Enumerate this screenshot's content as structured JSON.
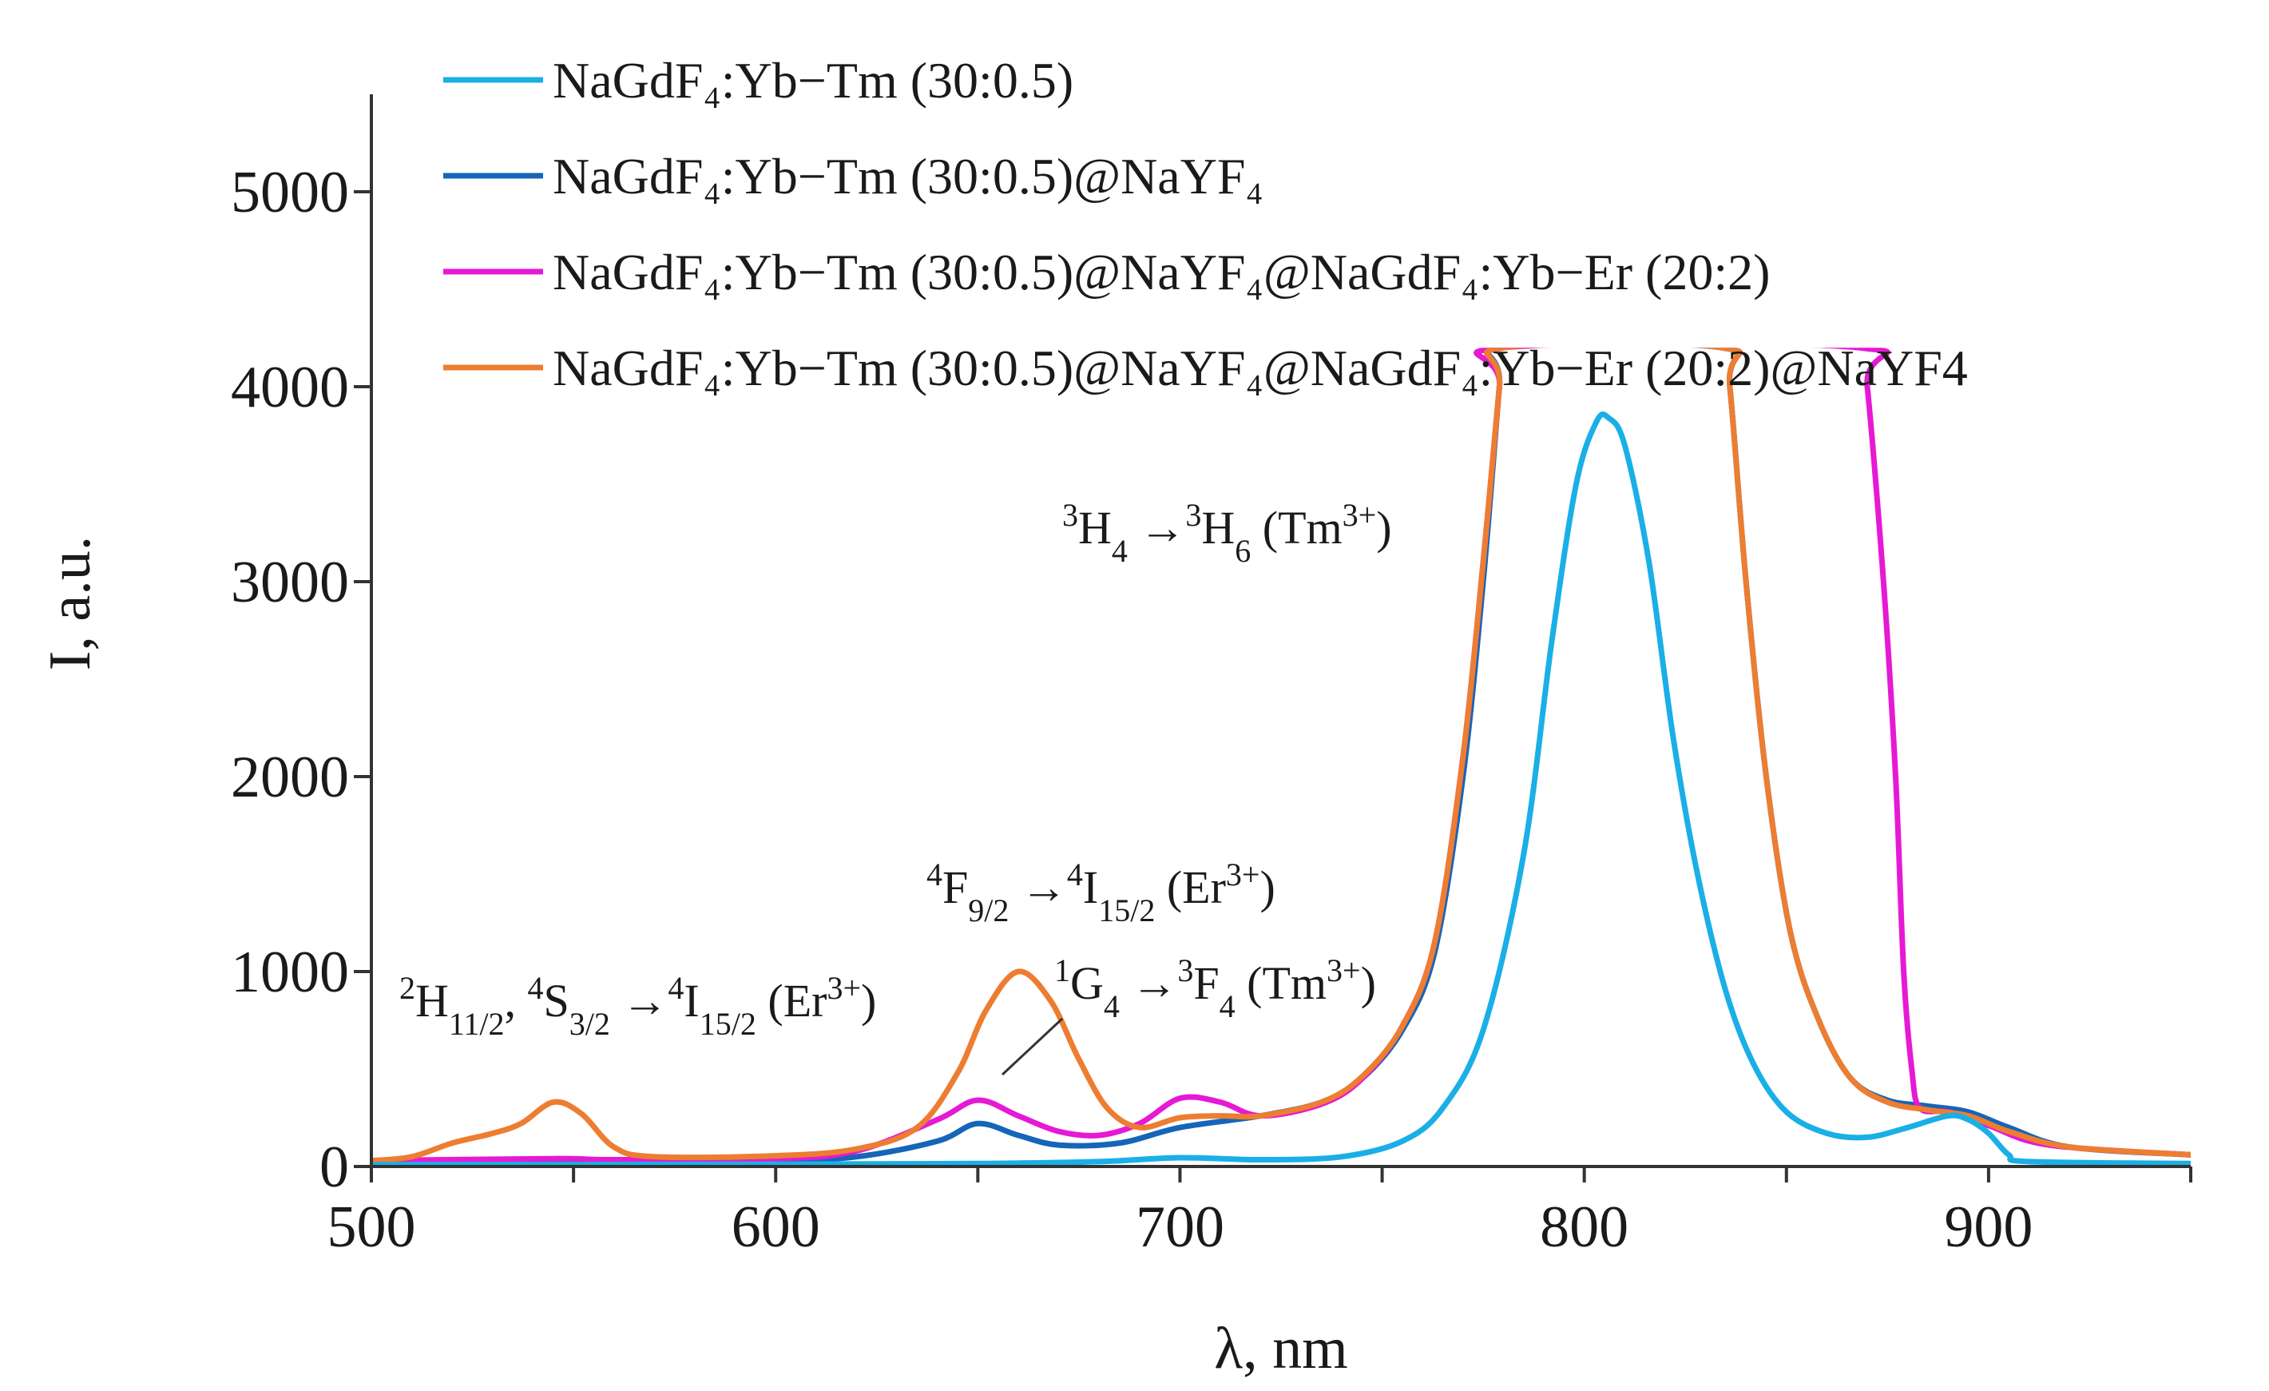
{
  "chart_data": {
    "type": "line",
    "xlabel": "λ, nm",
    "ylabel": "I, a.u.",
    "xlim": [
      500,
      950
    ],
    "ylim": [
      0,
      5500
    ],
    "x_ticks": [
      500,
      600,
      700,
      800,
      900
    ],
    "y_ticks": [
      0,
      1000,
      2000,
      3000,
      4000,
      5000
    ],
    "legend_position": "top",
    "series": [
      {
        "name": "NaGdF4:Yb−Tm (30:0.5)",
        "legend_label": "NaGdF₄:Yb−Tm (30:0.5)",
        "color": "#1AAFE6",
        "points": [
          [
            500,
            10
          ],
          [
            550,
            10
          ],
          [
            600,
            12
          ],
          [
            650,
            15
          ],
          [
            680,
            25
          ],
          [
            700,
            45
          ],
          [
            720,
            35
          ],
          [
            740,
            50
          ],
          [
            755,
            130
          ],
          [
            765,
            300
          ],
          [
            775,
            700
          ],
          [
            785,
            1600
          ],
          [
            792,
            2700
          ],
          [
            798,
            3500
          ],
          [
            803,
            3820
          ],
          [
            806,
            3840
          ],
          [
            810,
            3700
          ],
          [
            816,
            3100
          ],
          [
            822,
            2200
          ],
          [
            828,
            1500
          ],
          [
            835,
            900
          ],
          [
            842,
            520
          ],
          [
            850,
            280
          ],
          [
            860,
            170
          ],
          [
            870,
            150
          ],
          [
            880,
            200
          ],
          [
            890,
            260
          ],
          [
            895,
            240
          ],
          [
            900,
            170
          ],
          [
            905,
            60
          ],
          [
            910,
            25
          ],
          [
            950,
            15
          ]
        ]
      },
      {
        "name": "NaGdF4:Yb−Tm (30:0.5)@NaYF4",
        "legend_label": "NaGdF₄:Yb−Tm (30:0.5)@NaYF₄",
        "color": "#1565B8",
        "points": [
          [
            500,
            25
          ],
          [
            550,
            30
          ],
          [
            600,
            35
          ],
          [
            620,
            50
          ],
          [
            640,
            130
          ],
          [
            650,
            220
          ],
          [
            660,
            160
          ],
          [
            670,
            110
          ],
          [
            685,
            120
          ],
          [
            700,
            200
          ],
          [
            720,
            260
          ],
          [
            735,
            330
          ],
          [
            745,
            450
          ],
          [
            755,
            700
          ],
          [
            763,
            1100
          ],
          [
            770,
            2000
          ],
          [
            775,
            3000
          ],
          [
            779,
            4000
          ],
          [
            780,
            4200
          ],
          [
            834,
            4200
          ],
          [
            836,
            4000
          ],
          [
            840,
            3000
          ],
          [
            845,
            2000
          ],
          [
            851,
            1200
          ],
          [
            858,
            750
          ],
          [
            866,
            450
          ],
          [
            875,
            340
          ],
          [
            885,
            310
          ],
          [
            895,
            280
          ],
          [
            905,
            200
          ],
          [
            920,
            100
          ],
          [
            950,
            60
          ]
        ]
      },
      {
        "name": "NaGdF4:Yb−Tm (30:0.5)@NaYF4@NaGdF4:Yb−Er (20:2)",
        "legend_label": "NaGdF₄:Yb−Tm (30:0.5)@NaYF₄@NaGdF₄:Yb−Er  (20:2)",
        "color": "#E619D4",
        "points": [
          [
            500,
            30
          ],
          [
            545,
            40
          ],
          [
            560,
            35
          ],
          [
            600,
            40
          ],
          [
            620,
            80
          ],
          [
            640,
            240
          ],
          [
            650,
            340
          ],
          [
            660,
            260
          ],
          [
            670,
            180
          ],
          [
            680,
            160
          ],
          [
            690,
            220
          ],
          [
            700,
            350
          ],
          [
            710,
            330
          ],
          [
            720,
            260
          ],
          [
            735,
            320
          ],
          [
            745,
            450
          ],
          [
            755,
            720
          ],
          [
            763,
            1150
          ],
          [
            770,
            2100
          ],
          [
            775,
            3100
          ],
          [
            779,
            4000
          ],
          [
            780,
            4200
          ],
          [
            868,
            4200
          ],
          [
            870,
            4000
          ],
          [
            874,
            3000
          ],
          [
            877,
            2000
          ],
          [
            879,
            1000
          ],
          [
            881,
            500
          ],
          [
            883,
            300
          ],
          [
            890,
            280
          ],
          [
            900,
            210
          ],
          [
            915,
            110
          ],
          [
            950,
            60
          ]
        ]
      },
      {
        "name": "NaGdF4:Yb−Tm (30:0.5)@NaYF4@NaGdF4:Yb−Er (20:2)@NaYF4",
        "legend_label": "NaGdF₄:Yb−Tm (30:0.5)@NaYF₄@NaGdF₄:Yb−Er  (20:2)@NaYF4",
        "color": "#ED7D31",
        "points": [
          [
            500,
            30
          ],
          [
            510,
            50
          ],
          [
            520,
            120
          ],
          [
            530,
            170
          ],
          [
            537,
            220
          ],
          [
            545,
            330
          ],
          [
            552,
            270
          ],
          [
            560,
            100
          ],
          [
            570,
            50
          ],
          [
            600,
            55
          ],
          [
            620,
            90
          ],
          [
            635,
            200
          ],
          [
            645,
            480
          ],
          [
            652,
            800
          ],
          [
            660,
            1000
          ],
          [
            668,
            850
          ],
          [
            675,
            550
          ],
          [
            682,
            300
          ],
          [
            690,
            200
          ],
          [
            700,
            250
          ],
          [
            710,
            260
          ],
          [
            720,
            260
          ],
          [
            735,
            330
          ],
          [
            745,
            460
          ],
          [
            755,
            720
          ],
          [
            763,
            1150
          ],
          [
            770,
            2100
          ],
          [
            775,
            3100
          ],
          [
            779,
            4000
          ],
          [
            780,
            4200
          ],
          [
            834,
            4200
          ],
          [
            836,
            4000
          ],
          [
            840,
            3000
          ],
          [
            845,
            2000
          ],
          [
            851,
            1200
          ],
          [
            858,
            750
          ],
          [
            866,
            450
          ],
          [
            875,
            330
          ],
          [
            885,
            290
          ],
          [
            895,
            260
          ],
          [
            905,
            180
          ],
          [
            920,
            100
          ],
          [
            950,
            60
          ]
        ]
      }
    ],
    "annotations": [
      {
        "id": "tm-main",
        "pre": "3",
        "a": "H",
        "a_sub": "4",
        "arrow": " →",
        "post": "3",
        "b": "H",
        "b_sub": "6",
        "tail": " (Tm",
        "sup": "3+",
        "close": ")"
      },
      {
        "id": "er-red",
        "pre": "4",
        "a": "F",
        "a_sub": "9/2",
        "arrow": " →",
        "post": "4",
        "b": "I",
        "b_sub": "15/2",
        "tail": " (Er",
        "sup": "3+",
        "close": ")"
      },
      {
        "id": "tm-1g4",
        "pre": "1",
        "a": "G",
        "a_sub": "4",
        "arrow": " →",
        "post": "3",
        "b": "F",
        "b_sub": "4",
        "tail": " (Tm",
        "sup": "3+",
        "close": ")"
      },
      {
        "id": "er-green",
        "pre": "2",
        "a": "H",
        "a_sub": "11/2",
        "mid": ",  ",
        "pre2": "4",
        "a2": "S",
        "a2_sub": "3/2",
        "arrow": " →",
        "post": "4",
        "b": "I",
        "b_sub": "15/2",
        "tail": " (Er",
        "sup": "3+",
        "close": ")"
      }
    ]
  }
}
